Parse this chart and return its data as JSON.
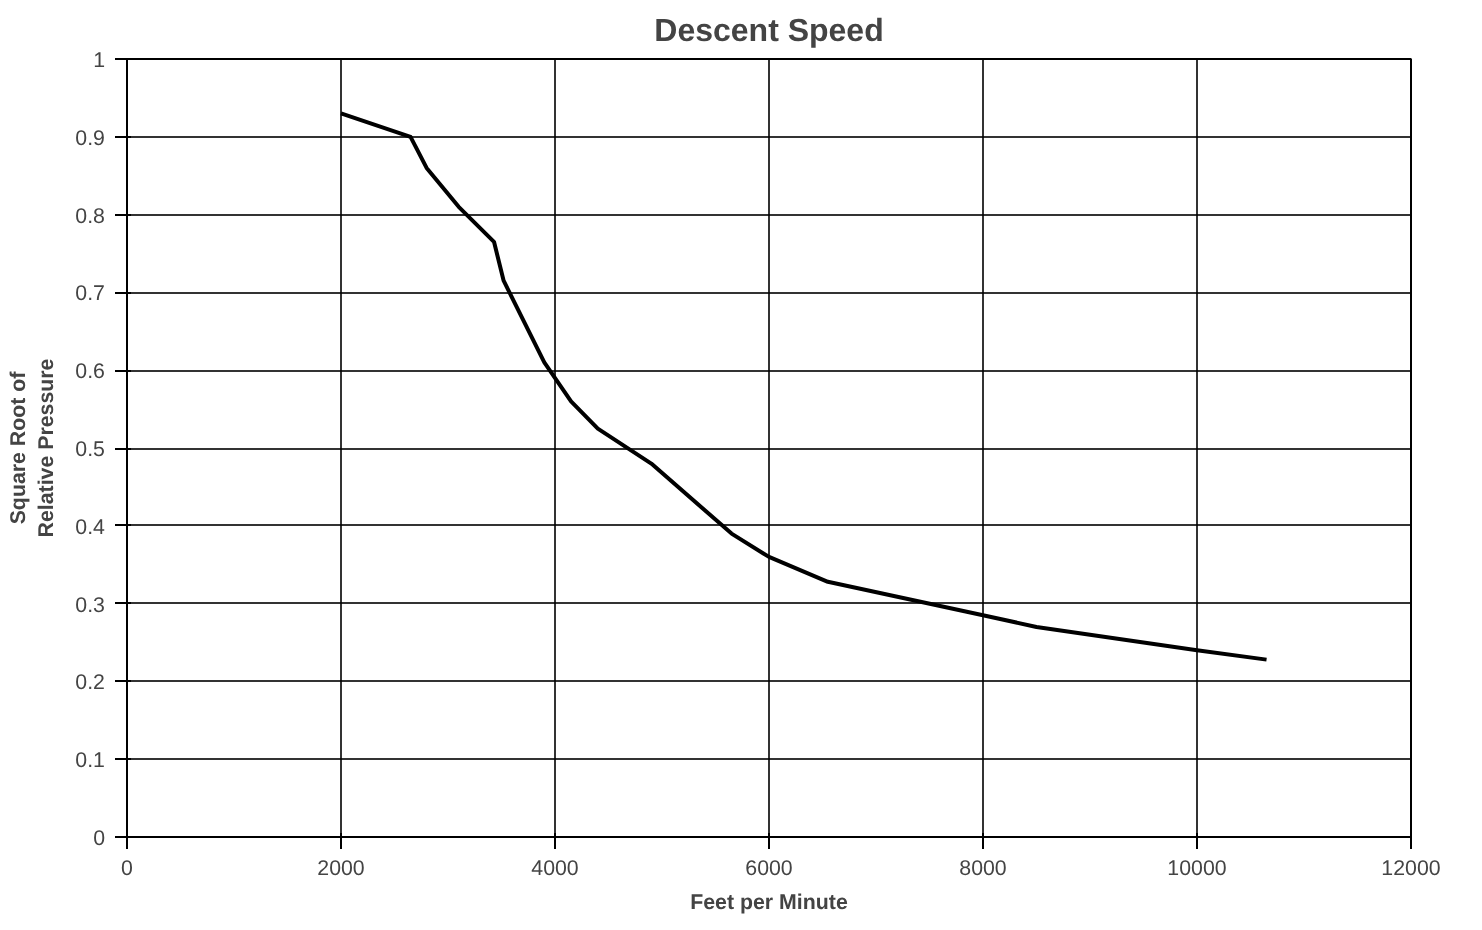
{
  "chart_data": {
    "type": "line",
    "title": "Descent Speed",
    "xlabel": "Feet per Minute",
    "ylabel": "Square Root of\nRelative Pressure",
    "xlim": [
      0,
      12000
    ],
    "xticks": [
      0,
      2000,
      4000,
      6000,
      8000,
      10000,
      12000
    ],
    "ylim": [
      0,
      1
    ],
    "yticks": [
      0,
      0.1,
      0.2,
      0.3,
      0.4,
      0.5,
      0.6,
      0.7,
      0.8,
      0.9,
      1
    ],
    "grid": true,
    "marker": "none",
    "line_style": "solid",
    "series": [
      {
        "color": "#000000",
        "x": [
          2000,
          2650,
          2800,
          3100,
          3430,
          3520,
          3900,
          4150,
          4400,
          4900,
          5650,
          6000,
          6550,
          8000,
          8500,
          10000,
          10650
        ],
        "values": [
          0.93,
          0.9,
          0.86,
          0.81,
          0.765,
          0.715,
          0.61,
          0.56,
          0.525,
          0.48,
          0.39,
          0.36,
          0.328,
          0.285,
          0.27,
          0.24,
          0.228
        ]
      }
    ]
  }
}
